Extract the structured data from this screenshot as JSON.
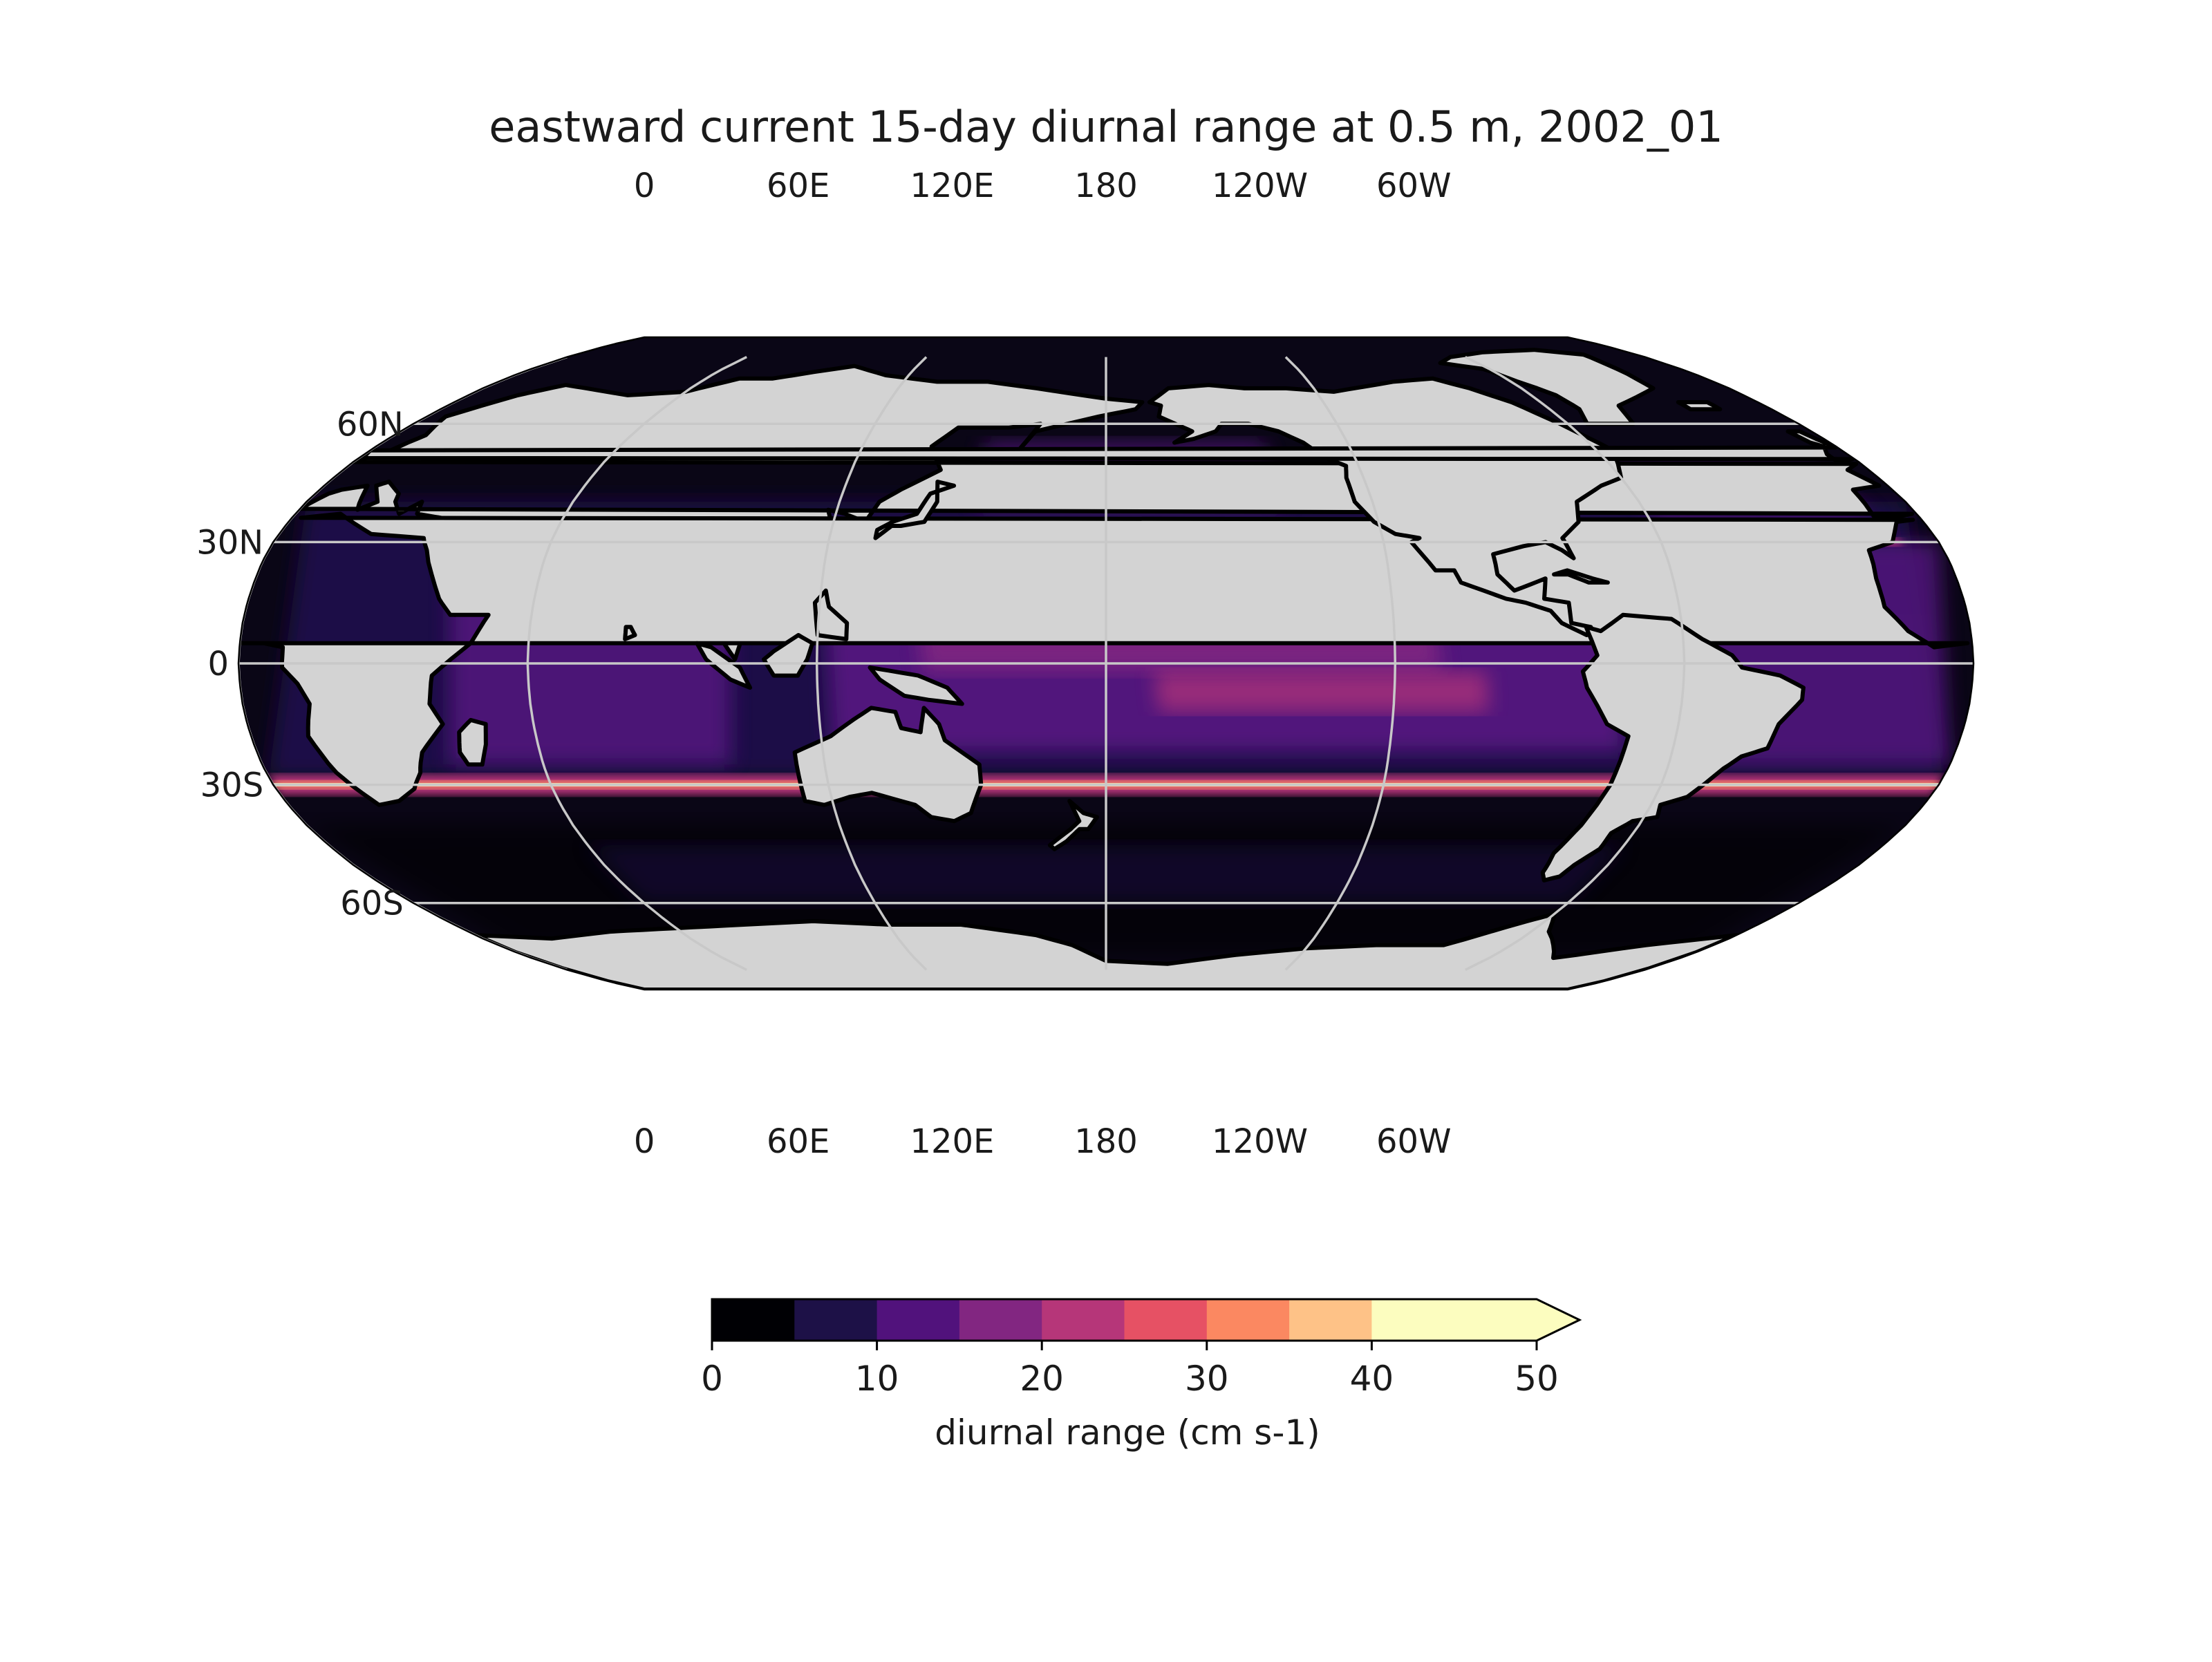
{
  "chart_data": {
    "type": "heatmap",
    "title": "eastward current 15-day diurnal range at 0.5 m, 2002_01",
    "projection": "Robinson, centered at 180",
    "lon_ticks_top": [
      "60E",
      "120E",
      "180",
      "120W",
      "60W",
      "0"
    ],
    "lon_ticks_bottom": [
      "60E",
      "120E",
      "180",
      "120W",
      "60W",
      "0"
    ],
    "lat_ticks": [
      "60N",
      "30N",
      "0",
      "30S",
      "60S"
    ],
    "lat_values": [
      60,
      30,
      0,
      -30,
      -60
    ],
    "lon_values": [
      60,
      120,
      180,
      -120,
      -60,
      0
    ],
    "land_color": "#d3d3d3",
    "grid": true,
    "colorbar": {
      "label": "diurnal range (cm s-1)",
      "tick_labels": [
        "0",
        "10",
        "20",
        "30",
        "40",
        "50"
      ],
      "levels": [
        0,
        5,
        10,
        15,
        20,
        25,
        30,
        35,
        40,
        45,
        50
      ],
      "colors": [
        "#000004",
        "#1d1147",
        "#51127c",
        "#822681",
        "#b63679",
        "#e65164",
        "#fb8861",
        "#fec287",
        "#fcfdbf",
        "#fcfdbf"
      ],
      "extend": "max",
      "range": [
        0,
        50
      ],
      "cmap": "magma"
    },
    "features": [
      {
        "name": "band at 30S",
        "value_range": [
          35,
          50
        ]
      },
      {
        "name": "equatorial Pacific",
        "value_range": [
          15,
          25
        ]
      },
      {
        "name": "Southern Ocean",
        "value_range": [
          0,
          10
        ]
      }
    ]
  }
}
